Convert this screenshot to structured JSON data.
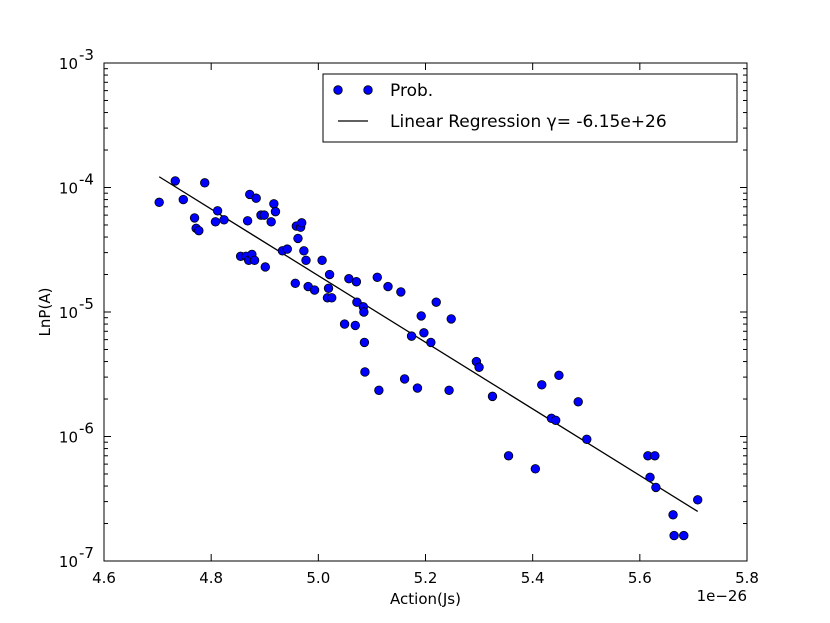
{
  "chart_data": {
    "type": "scatter",
    "xlabel": "Action(Js)",
    "ylabel": "LnP(A)",
    "x_offset_label": "1e−26",
    "xlim": [
      4.6,
      5.8
    ],
    "ylim": [
      1e-07,
      0.001
    ],
    "y_scale": "log",
    "x_ticks": [
      4.6,
      4.8,
      5.0,
      5.2,
      5.4,
      5.6,
      5.8
    ],
    "x_tick_labels": [
      "4.6",
      "4.8",
      "5.0",
      "5.2",
      "5.4",
      "5.6",
      "5.8"
    ],
    "y_ticks": [
      1e-07,
      1e-06,
      1e-05,
      0.0001,
      0.001
    ],
    "y_tick_labels": [
      {
        "base": "10",
        "exp": "-7"
      },
      {
        "base": "10",
        "exp": "-6"
      },
      {
        "base": "10",
        "exp": "-5"
      },
      {
        "base": "10",
        "exp": "-4"
      },
      {
        "base": "10",
        "exp": "-3"
      }
    ],
    "grid": false,
    "legend_position": "top-right",
    "colors": {
      "points": "#0000ff",
      "point_edge": "#000000",
      "line": "#000000"
    },
    "series": [
      {
        "name": "Prob.",
        "kind": "scatter",
        "points": [
          [
            4.703,
            7.6e-05
          ],
          [
            4.733,
            0.000113
          ],
          [
            4.748,
            8e-05
          ],
          [
            4.769,
            5.7e-05
          ],
          [
            4.772,
            4.7e-05
          ],
          [
            4.777,
            4.5e-05
          ],
          [
            4.788,
            0.000109
          ],
          [
            4.808,
            5.3e-05
          ],
          [
            4.812,
            6.5e-05
          ],
          [
            4.824,
            5.5e-05
          ],
          [
            4.855,
            2.8e-05
          ],
          [
            4.865,
            2.8e-05
          ],
          [
            4.868,
            5.4e-05
          ],
          [
            4.87,
            2.6e-05
          ],
          [
            4.872,
            8.8e-05
          ],
          [
            4.876,
            2.9e-05
          ],
          [
            4.881,
            2.6e-05
          ],
          [
            4.884,
            8.2e-05
          ],
          [
            4.893,
            6e-05
          ],
          [
            4.899,
            6e-05
          ],
          [
            4.901,
            2.3e-05
          ],
          [
            4.912,
            5.3e-05
          ],
          [
            4.917,
            7.4e-05
          ],
          [
            4.92,
            6.4e-05
          ],
          [
            4.933,
            3.1e-05
          ],
          [
            4.942,
            3.2e-05
          ],
          [
            4.957,
            1.7e-05
          ],
          [
            4.959,
            4.9e-05
          ],
          [
            4.962,
            3.9e-05
          ],
          [
            4.967,
            4.8e-05
          ],
          [
            4.969,
            5.2e-05
          ],
          [
            4.973,
            3.1e-05
          ],
          [
            4.977,
            2.6e-05
          ],
          [
            4.981,
            1.6e-05
          ],
          [
            4.993,
            1.5e-05
          ],
          [
            5.007,
            2.6e-05
          ],
          [
            5.017,
            1.3e-05
          ],
          [
            5.019,
            1.55e-05
          ],
          [
            5.021,
            2e-05
          ],
          [
            5.025,
            1.3e-05
          ],
          [
            5.049,
            8e-06
          ],
          [
            5.057,
            1.85e-05
          ],
          [
            5.069,
            7.8e-06
          ],
          [
            5.071,
            1.75e-05
          ],
          [
            5.072,
            1.2e-05
          ],
          [
            5.084,
            1.1e-05
          ],
          [
            5.085,
            1e-05
          ],
          [
            5.086,
            5.7e-06
          ],
          [
            5.087,
            3.3e-06
          ],
          [
            5.11,
            1.9e-05
          ],
          [
            5.113,
            2.35e-06
          ],
          [
            5.13,
            1.6e-05
          ],
          [
            5.154,
            1.45e-05
          ],
          [
            5.161,
            2.9e-06
          ],
          [
            5.174,
            6.4e-06
          ],
          [
            5.185,
            2.45e-06
          ],
          [
            5.192,
            9.3e-06
          ],
          [
            5.197,
            6.8e-06
          ],
          [
            5.21,
            5.7e-06
          ],
          [
            5.22,
            1.2e-05
          ],
          [
            5.244,
            2.35e-06
          ],
          [
            5.248,
            8.8e-06
          ],
          [
            5.295,
            4e-06
          ],
          [
            5.3,
            3.6e-06
          ],
          [
            5.325,
            2.1e-06
          ],
          [
            5.355,
            7e-07
          ],
          [
            5.405,
            5.5e-07
          ],
          [
            5.417,
            2.6e-06
          ],
          [
            5.435,
            1.4e-06
          ],
          [
            5.443,
            1.35e-06
          ],
          [
            5.449,
            3.1e-06
          ],
          [
            5.485,
            1.9e-06
          ],
          [
            5.501,
            9.5e-07
          ],
          [
            5.615,
            7e-07
          ],
          [
            5.619,
            4.7e-07
          ],
          [
            5.628,
            7e-07
          ],
          [
            5.63,
            3.9e-07
          ],
          [
            5.662,
            2.35e-07
          ],
          [
            5.664,
            1.6e-07
          ],
          [
            5.682,
            1.6e-07
          ],
          [
            5.708,
            3.1e-07
          ]
        ]
      },
      {
        "name": "Linear Regression γ= -6.15e+26",
        "kind": "line",
        "points": [
          [
            4.703,
            0.000122
          ],
          [
            5.708,
            2.5e-07
          ]
        ]
      }
    ]
  }
}
